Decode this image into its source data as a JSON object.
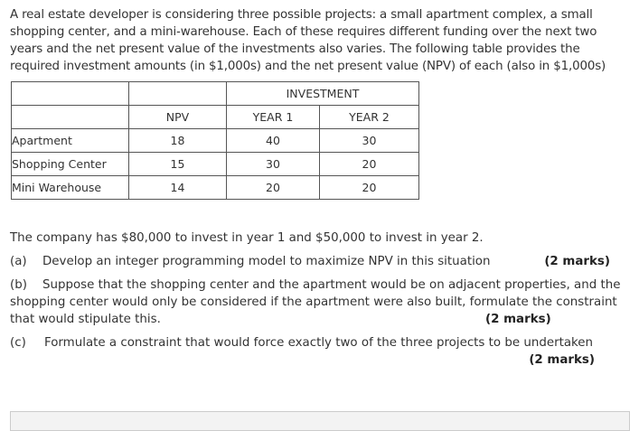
{
  "intro": "A real estate developer is considering three possible projects: a small apartment complex, a small shopping center, and a mini-warehouse. Each of these requires different funding over the next two years and the net present value of the investments also varies. The following table provides the required investment amounts (in $1,000s) and the net present value (NPV) of each (also in $1,000s)",
  "table": {
    "group_header": "INVESTMENT",
    "headers": [
      "NPV",
      "YEAR 1",
      "YEAR 2"
    ],
    "rows": [
      [
        "Apartment",
        18,
        40,
        30
      ],
      [
        "Shopping Center",
        15,
        30,
        20
      ],
      [
        "Mini Warehouse",
        14,
        20,
        20
      ]
    ]
  },
  "budget": "The company has $80,000 to invest in year 1 and $50,000 to invest in year 2.",
  "questions": [
    {
      "label": "(a)",
      "text": "Develop an integer programming model to maximize NPV in this situation",
      "marks": "(2 marks)"
    },
    {
      "label": "(b)",
      "text": "Suppose that the shopping center and the apartment would be on adjacent properties, and the shopping center would only be considered if the apartment were also built, formulate the constraint that would stipulate this.",
      "marks": "(2 marks)"
    },
    {
      "label": "(c)",
      "text": "Formulate a constraint that would force exactly two of the three projects to be undertaken",
      "marks": "(2 marks)"
    }
  ]
}
